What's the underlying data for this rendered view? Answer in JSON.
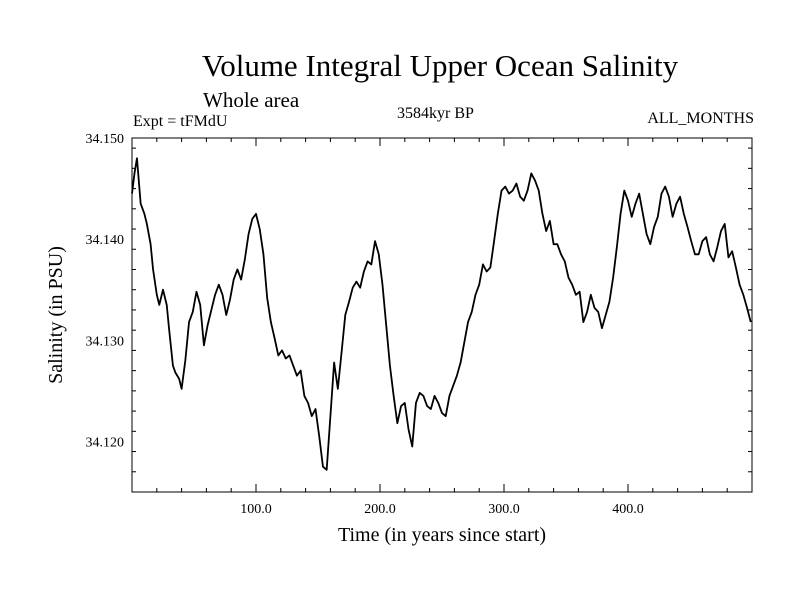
{
  "header": {
    "title": "Volume Integral Upper Ocean Salinity",
    "subtitle": "Whole area",
    "experiment": "Expt = tFMdU",
    "period": "3584kyr BP",
    "months": "ALL_MONTHS"
  },
  "chart_data": {
    "type": "line",
    "title": "Volume Integral Upper Ocean Salinity",
    "xlabel": "Time (in years since start)",
    "ylabel": "Salinity (in PSU)",
    "xlim": [
      0,
      500
    ],
    "ylim": [
      34.115,
      34.15
    ],
    "xticks": [
      100,
      200,
      300,
      400
    ],
    "xtick_labels": [
      "100.0",
      "200.0",
      "300.0",
      "400.0"
    ],
    "yticks": [
      34.12,
      34.13,
      34.14,
      34.15
    ],
    "ytick_labels": [
      "34.120",
      "34.130",
      "34.140",
      "34.150"
    ],
    "grid": false,
    "series": [
      {
        "name": "Salinity",
        "x": [
          0,
          2,
          4,
          7,
          10,
          12,
          15,
          17,
          20,
          22,
          25,
          28,
          30,
          33,
          35,
          38,
          40,
          43,
          46,
          49,
          52,
          55,
          58,
          61,
          64,
          67,
          70,
          73,
          76,
          79,
          82,
          85,
          88,
          91,
          94,
          97,
          100,
          103,
          106,
          109,
          112,
          115,
          118,
          121,
          124,
          127,
          130,
          133,
          136,
          139,
          142,
          145,
          148,
          151,
          154,
          157,
          160,
          163,
          166,
          169,
          172,
          175,
          178,
          181,
          184,
          187,
          190,
          193,
          196,
          199,
          202,
          205,
          208,
          211,
          214,
          217,
          220,
          223,
          226,
          229,
          232,
          235,
          238,
          241,
          244,
          247,
          250,
          253,
          256,
          259,
          262,
          265,
          268,
          271,
          274,
          277,
          280,
          283,
          286,
          289,
          292,
          295,
          298,
          301,
          304,
          307,
          310,
          313,
          316,
          319,
          322,
          325,
          328,
          331,
          334,
          337,
          340,
          343,
          346,
          349,
          352,
          355,
          358,
          361,
          364,
          367,
          370,
          373,
          376,
          379,
          382,
          385,
          388,
          391,
          394,
          397,
          400,
          403,
          406,
          409,
          412,
          415,
          418,
          421,
          424,
          427,
          430,
          433,
          436,
          439,
          442,
          445,
          448,
          451,
          454,
          457,
          460,
          463,
          466,
          469,
          472,
          475,
          478,
          481,
          484,
          487,
          490,
          493,
          496,
          499
        ],
        "values": [
          34.1445,
          34.1465,
          34.148,
          34.1435,
          34.1425,
          34.1415,
          34.1395,
          34.137,
          34.1345,
          34.1335,
          34.135,
          34.1335,
          34.131,
          34.1275,
          34.1268,
          34.1262,
          34.1252,
          34.128,
          34.1318,
          34.1328,
          34.1348,
          34.1335,
          34.1295,
          34.1315,
          34.133,
          34.1345,
          34.1355,
          34.1345,
          34.1325,
          34.134,
          34.136,
          34.137,
          34.136,
          34.138,
          34.1405,
          34.142,
          34.1425,
          34.141,
          34.1385,
          34.1342,
          34.1318,
          34.1302,
          34.1285,
          34.129,
          34.1282,
          34.1285,
          34.1275,
          34.1265,
          34.127,
          34.1245,
          34.1238,
          34.1225,
          34.1232,
          34.1205,
          34.1175,
          34.1172,
          34.1225,
          34.1278,
          34.1252,
          34.1288,
          34.1325,
          34.1338,
          34.1352,
          34.1358,
          34.1352,
          34.1368,
          34.1378,
          34.1375,
          34.1398,
          34.1385,
          34.1355,
          34.1315,
          34.1275,
          34.1245,
          34.1218,
          34.1235,
          34.1238,
          34.1212,
          34.1195,
          34.1238,
          34.1248,
          34.1245,
          34.1235,
          34.1232,
          34.1245,
          34.1238,
          34.1228,
          34.1225,
          34.1245,
          34.1255,
          34.1265,
          34.1278,
          34.1298,
          34.1318,
          34.1328,
          34.1345,
          34.1355,
          34.1375,
          34.1368,
          34.1372,
          34.1398,
          34.1425,
          34.1448,
          34.1452,
          34.1445,
          34.1448,
          34.1455,
          34.1442,
          34.1438,
          34.1448,
          34.1465,
          34.1458,
          34.1448,
          34.1425,
          34.1408,
          34.1418,
          34.1395,
          34.1395,
          34.1385,
          34.1378,
          34.1362,
          34.1355,
          34.1345,
          34.1348,
          34.1318,
          34.1328,
          34.1345,
          34.1332,
          34.1328,
          34.1312,
          34.1325,
          34.1338,
          34.1362,
          34.1392,
          34.1425,
          34.1448,
          34.1438,
          34.1422,
          34.1435,
          34.1445,
          34.1425,
          34.1405,
          34.1395,
          34.1412,
          34.1422,
          34.1445,
          34.1452,
          34.1442,
          34.1422,
          34.1435,
          34.1442,
          34.1425,
          34.1412,
          34.1398,
          34.1385,
          34.1385,
          34.1398,
          34.1402,
          34.1385,
          34.1378,
          34.1392,
          34.1408,
          34.1415,
          34.1382,
          34.1388,
          34.1372,
          34.1355,
          34.1345,
          34.1332,
          34.1318
        ]
      }
    ]
  }
}
